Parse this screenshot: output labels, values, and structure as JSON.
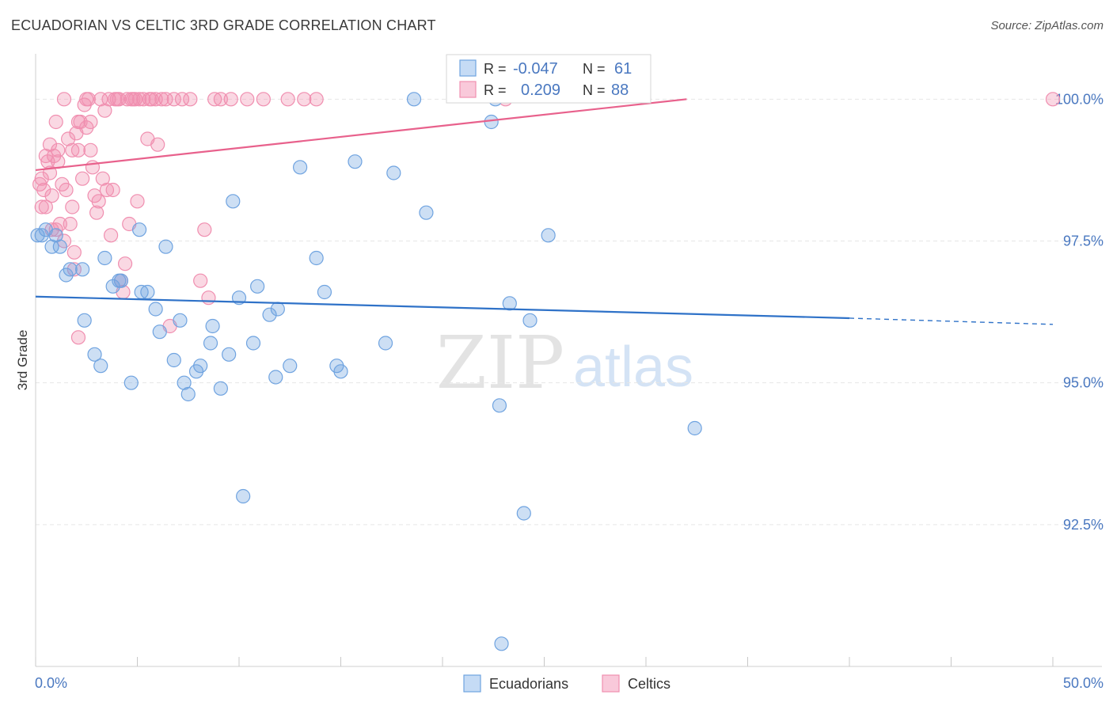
{
  "title": "ECUADORIAN VS CELTIC 3RD GRADE CORRELATION CHART",
  "source": "Source: ZipAtlas.com",
  "watermark": {
    "zip": "ZIP",
    "atlas": "atlas"
  },
  "colors": {
    "blue": "#6fa3e0",
    "blue_line": "#2f72c8",
    "pink": "#f08fb0",
    "pink_line": "#e8618c",
    "axis_text": "#4a78c0"
  },
  "legend_stats": {
    "r_label": "R =",
    "n_label": "N =",
    "blue_r": "-0.047",
    "blue_n": "61",
    "pink_r": "0.209",
    "pink_n": "88"
  },
  "chart_data": {
    "type": "scatter",
    "title": "ECUADORIAN VS CELTIC 3RD GRADE CORRELATION CHART",
    "xlabel": "",
    "ylabel": "3rd Grade",
    "xlim": [
      0,
      50
    ],
    "ylim": [
      90.0,
      100.8
    ],
    "x_tick_labels": [
      "0.0%",
      "50.0%"
    ],
    "y_ticks": [
      92.5,
      95.0,
      97.5,
      100.0
    ],
    "y_tick_labels": [
      "92.5%",
      "95.0%",
      "97.5%",
      "100.0%"
    ],
    "legend": [
      "Ecuadorians",
      "Celtics"
    ],
    "series": [
      {
        "name": "Ecuadorians",
        "trend": {
          "x0": 0,
          "y0": 96.52,
          "x1": 40,
          "y1": 96.14,
          "dash_to": 50,
          "dash_y": 96.03
        },
        "points": [
          [
            0.3,
            97.6
          ],
          [
            0.5,
            97.7
          ],
          [
            0.8,
            97.4
          ],
          [
            1.0,
            97.6
          ],
          [
            1.2,
            97.4
          ],
          [
            1.5,
            96.9
          ],
          [
            1.7,
            97.0
          ],
          [
            2.3,
            97.0
          ],
          [
            2.4,
            96.1
          ],
          [
            2.9,
            95.5
          ],
          [
            3.2,
            95.3
          ],
          [
            3.4,
            97.2
          ],
          [
            3.8,
            96.7
          ],
          [
            4.1,
            96.8
          ],
          [
            4.2,
            96.8
          ],
          [
            4.7,
            95.0
          ],
          [
            5.1,
            97.7
          ],
          [
            5.2,
            96.6
          ],
          [
            5.5,
            96.6
          ],
          [
            5.9,
            96.3
          ],
          [
            6.1,
            95.9
          ],
          [
            6.4,
            97.4
          ],
          [
            6.8,
            95.4
          ],
          [
            7.1,
            96.1
          ],
          [
            7.3,
            95.0
          ],
          [
            7.5,
            94.8
          ],
          [
            7.9,
            95.2
          ],
          [
            8.1,
            95.3
          ],
          [
            8.6,
            95.7
          ],
          [
            8.7,
            96.0
          ],
          [
            9.1,
            94.9
          ],
          [
            9.5,
            95.5
          ],
          [
            9.7,
            98.2
          ],
          [
            10.0,
            96.5
          ],
          [
            10.2,
            93.0
          ],
          [
            10.7,
            95.7
          ],
          [
            10.9,
            96.7
          ],
          [
            11.5,
            96.2
          ],
          [
            11.8,
            95.1
          ],
          [
            11.9,
            96.3
          ],
          [
            12.5,
            95.3
          ],
          [
            13.0,
            98.8
          ],
          [
            13.8,
            97.2
          ],
          [
            14.2,
            96.6
          ],
          [
            14.8,
            95.3
          ],
          [
            15.0,
            95.2
          ],
          [
            15.7,
            98.9
          ],
          [
            17.2,
            95.7
          ],
          [
            17.6,
            98.7
          ],
          [
            18.6,
            100.0
          ],
          [
            19.2,
            98.0
          ],
          [
            22.4,
            99.6
          ],
          [
            22.6,
            100.0
          ],
          [
            22.8,
            94.6
          ],
          [
            22.9,
            90.4
          ],
          [
            23.3,
            96.4
          ],
          [
            24.0,
            92.7
          ],
          [
            24.3,
            96.1
          ],
          [
            25.2,
            97.6
          ],
          [
            32.4,
            94.2
          ],
          [
            0.1,
            97.6
          ]
        ]
      },
      {
        "name": "Celtics",
        "trend": {
          "x0": 0,
          "y0": 98.75,
          "x1": 32,
          "y1": 100.0
        },
        "points": [
          [
            0.2,
            98.5
          ],
          [
            0.3,
            98.6
          ],
          [
            0.4,
            98.4
          ],
          [
            0.5,
            98.1
          ],
          [
            0.5,
            99.0
          ],
          [
            0.6,
            98.9
          ],
          [
            0.7,
            98.7
          ],
          [
            0.7,
            99.2
          ],
          [
            0.8,
            98.3
          ],
          [
            0.8,
            97.7
          ],
          [
            0.9,
            99.0
          ],
          [
            1.0,
            99.6
          ],
          [
            1.0,
            97.7
          ],
          [
            1.1,
            98.9
          ],
          [
            1.1,
            99.1
          ],
          [
            1.2,
            97.8
          ],
          [
            1.3,
            98.5
          ],
          [
            1.4,
            97.5
          ],
          [
            1.4,
            100.0
          ],
          [
            1.5,
            98.4
          ],
          [
            1.6,
            99.3
          ],
          [
            1.7,
            97.8
          ],
          [
            1.8,
            98.1
          ],
          [
            1.8,
            99.1
          ],
          [
            1.9,
            97.3
          ],
          [
            1.9,
            97.0
          ],
          [
            2.0,
            99.4
          ],
          [
            2.1,
            95.8
          ],
          [
            2.1,
            99.1
          ],
          [
            2.1,
            99.6
          ],
          [
            2.2,
            99.6
          ],
          [
            2.3,
            98.6
          ],
          [
            2.4,
            99.9
          ],
          [
            2.5,
            99.5
          ],
          [
            2.5,
            100.0
          ],
          [
            2.6,
            100.0
          ],
          [
            2.7,
            99.6
          ],
          [
            2.7,
            99.1
          ],
          [
            2.8,
            98.8
          ],
          [
            2.9,
            98.3
          ],
          [
            3.0,
            98.0
          ],
          [
            3.1,
            98.2
          ],
          [
            3.2,
            100.0
          ],
          [
            3.3,
            98.6
          ],
          [
            3.4,
            99.8
          ],
          [
            3.5,
            98.4
          ],
          [
            3.6,
            100.0
          ],
          [
            3.7,
            97.6
          ],
          [
            3.8,
            98.4
          ],
          [
            3.9,
            100.0
          ],
          [
            4.0,
            100.0
          ],
          [
            4.1,
            100.0
          ],
          [
            4.2,
            96.8
          ],
          [
            4.3,
            96.6
          ],
          [
            4.4,
            97.1
          ],
          [
            4.5,
            100.0
          ],
          [
            4.6,
            97.8
          ],
          [
            4.7,
            100.0
          ],
          [
            4.8,
            100.0
          ],
          [
            4.9,
            100.0
          ],
          [
            5.0,
            98.2
          ],
          [
            5.1,
            100.0
          ],
          [
            5.3,
            100.0
          ],
          [
            5.5,
            99.3
          ],
          [
            5.6,
            100.0
          ],
          [
            5.7,
            100.0
          ],
          [
            5.9,
            100.0
          ],
          [
            6.0,
            99.2
          ],
          [
            6.2,
            100.0
          ],
          [
            6.4,
            100.0
          ],
          [
            6.6,
            96.0
          ],
          [
            6.8,
            100.0
          ],
          [
            7.2,
            100.0
          ],
          [
            7.6,
            100.0
          ],
          [
            8.1,
            96.8
          ],
          [
            8.3,
            97.7
          ],
          [
            8.5,
            96.5
          ],
          [
            8.8,
            100.0
          ],
          [
            9.1,
            100.0
          ],
          [
            9.6,
            100.0
          ],
          [
            10.4,
            100.0
          ],
          [
            11.2,
            100.0
          ],
          [
            12.4,
            100.0
          ],
          [
            13.2,
            100.0
          ],
          [
            13.8,
            100.0
          ],
          [
            23.1,
            100.0
          ],
          [
            50.0,
            100.0
          ],
          [
            0.3,
            98.1
          ]
        ]
      }
    ]
  }
}
